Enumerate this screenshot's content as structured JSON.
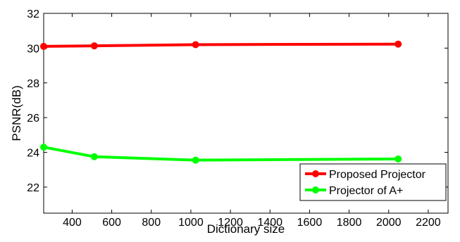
{
  "chart_data": {
    "type": "line",
    "title": "",
    "xlabel": "Dictionary size",
    "ylabel": "PSNR(dB)",
    "xlim": [
      256,
      2300
    ],
    "ylim": [
      20.5,
      32
    ],
    "xticks": [
      400,
      600,
      800,
      1000,
      1200,
      1400,
      1600,
      1800,
      2000,
      2200
    ],
    "yticks": [
      22,
      24,
      26,
      28,
      30,
      32
    ],
    "grid": false,
    "legend": "bottom-right",
    "series": [
      {
        "name": "Proposed Projector",
        "color": "#ff0000",
        "x": [
          256,
          512,
          1024,
          2048
        ],
        "values": [
          30.1,
          30.13,
          30.2,
          30.23
        ]
      },
      {
        "name": "Projector of A+",
        "color": "#00ff00",
        "x": [
          256,
          512,
          1024,
          2048
        ],
        "values": [
          24.3,
          23.75,
          23.55,
          23.62
        ]
      }
    ]
  }
}
